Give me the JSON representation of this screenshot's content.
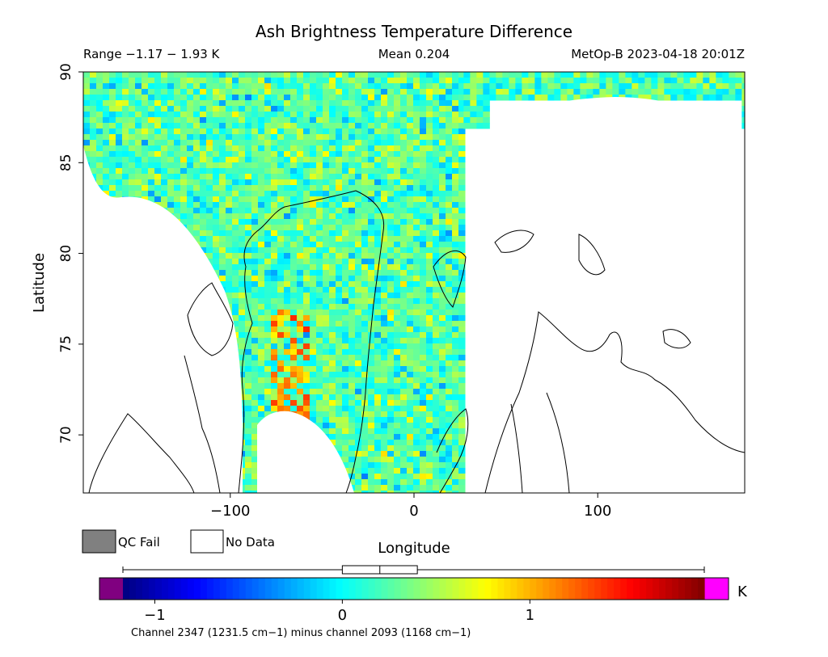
{
  "chart_data": {
    "type": "heatmap",
    "title": "Ash Brightness Temperature Difference",
    "range_text": "Range −1.17 − 1.93 K",
    "mean_text": "Mean 0.204",
    "satellite_time_text": "MetOp-B 2023-04-18 20:01Z",
    "xlabel": "Longitude",
    "ylabel": "Latitude",
    "xlim": [
      -180,
      180
    ],
    "ylim": [
      66.8,
      90
    ],
    "x_ticks": [
      -100,
      0,
      100
    ],
    "x_tick_labels": [
      "−100",
      "0",
      "100"
    ],
    "y_ticks": [
      70,
      75,
      80,
      85,
      90
    ],
    "y_tick_labels": [
      "70",
      "75",
      "80",
      "85",
      "90"
    ],
    "legend": [
      {
        "name": "QC Fail",
        "color": "#808080"
      },
      {
        "name": "No Data",
        "color": "#ffffff"
      }
    ],
    "colorbar": {
      "unit": "K",
      "vmin": -1.17,
      "vmax": 1.93,
      "tick_values": [
        -1,
        0,
        1
      ],
      "tick_labels": [
        "−1",
        "0",
        "1"
      ],
      "caption": "Channel 2347 (1231.5 cm−1) minus channel 2093 (1168 cm−1)",
      "under_color": "#800080",
      "over_color": "#ff00ff"
    },
    "boxplot": {
      "min": -1.17,
      "q1": 0.0,
      "median": 0.2,
      "q3": 0.4,
      "max": 1.93
    },
    "swath": {
      "lon_min": -180,
      "lon_max": 27,
      "typical_value": 0.25,
      "spread": 0.35,
      "warm_streak": {
        "lon_center": -70,
        "lat_max": 77,
        "value": 1.3
      }
    }
  }
}
